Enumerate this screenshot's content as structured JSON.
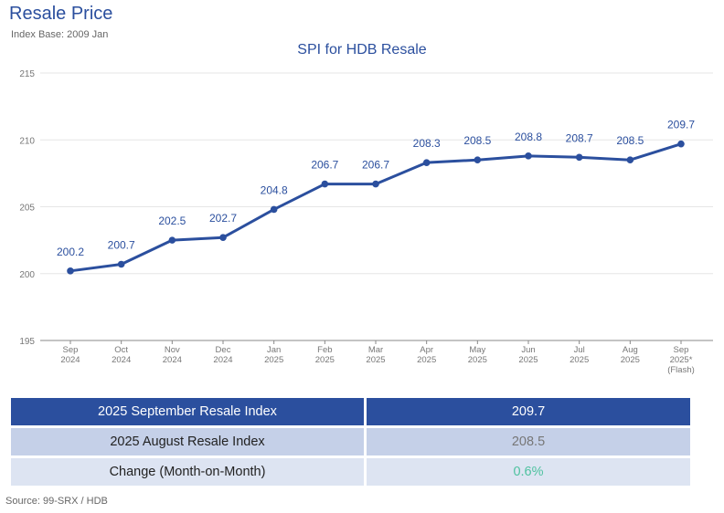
{
  "header": {
    "title": "Resale Price",
    "subtitle": "Index Base: 2009 Jan"
  },
  "chart_data": {
    "type": "line",
    "title": "SPI for HDB Resale",
    "xlabel": "",
    "ylabel": "",
    "ylim": [
      195,
      215
    ],
    "yticks": [
      195,
      200,
      205,
      210,
      215
    ],
    "grid": true,
    "categories": [
      [
        "Sep",
        "2024"
      ],
      [
        "Oct",
        "2024"
      ],
      [
        "Nov",
        "2024"
      ],
      [
        "Dec",
        "2024"
      ],
      [
        "Jan",
        "2025"
      ],
      [
        "Feb",
        "2025"
      ],
      [
        "Mar",
        "2025"
      ],
      [
        "Apr",
        "2025"
      ],
      [
        "May",
        "2025"
      ],
      [
        "Jun",
        "2025"
      ],
      [
        "Jul",
        "2025"
      ],
      [
        "Aug",
        "2025"
      ],
      [
        "Sep",
        "2025*",
        "(Flash)"
      ]
    ],
    "series": [
      {
        "values": [
          200.2,
          200.7,
          202.5,
          202.7,
          204.8,
          206.7,
          206.7,
          208.3,
          208.5,
          208.8,
          208.7,
          208.5,
          209.7
        ],
        "color": "#2b4f9e"
      }
    ]
  },
  "table": {
    "rows": [
      {
        "label": "2025 September Resale Index",
        "value": "209.7"
      },
      {
        "label": "2025 August Resale Index",
        "value": "208.5"
      },
      {
        "label": "Change (Month-on-Month)",
        "value": "0.6%"
      }
    ]
  },
  "colors": {
    "accent": "#2b4f9e",
    "positive": "#4fc2a0"
  },
  "source": "Source: 99-SRX / HDB"
}
